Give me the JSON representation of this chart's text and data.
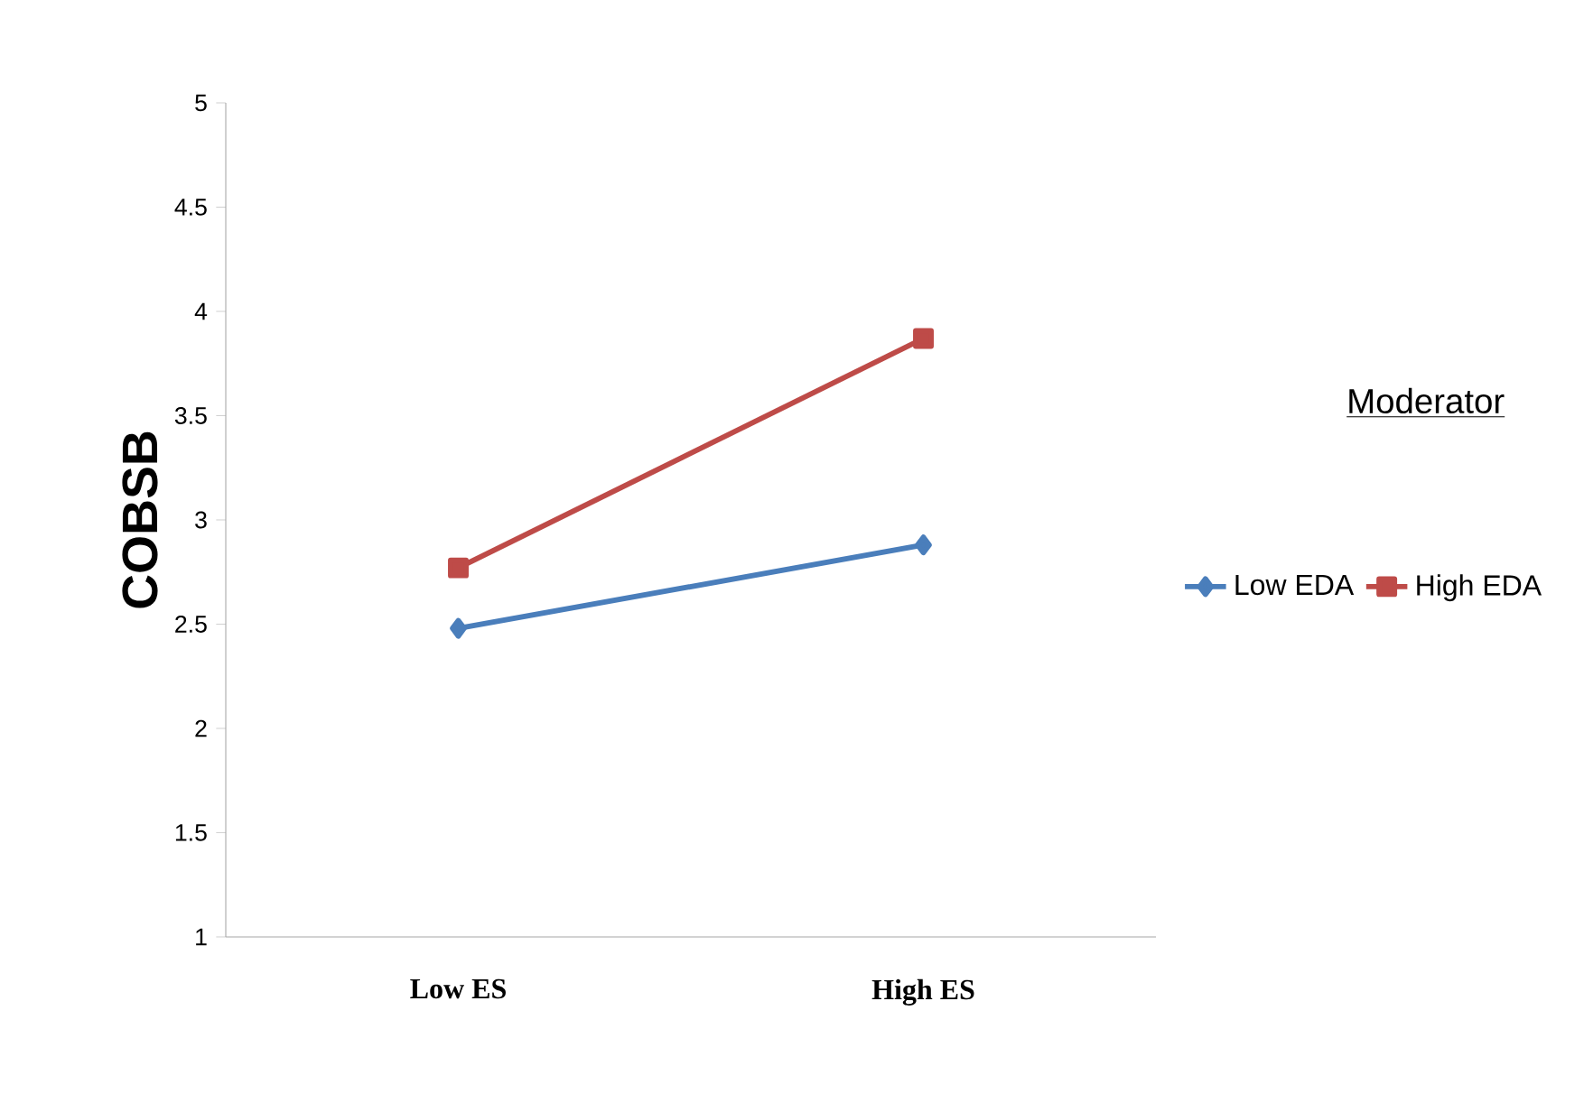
{
  "chart_data": {
    "type": "line",
    "ylabel": "COBSB",
    "legend_title": "Moderator",
    "categories": [
      "Low ES",
      "High ES"
    ],
    "series": [
      {
        "name": "Low EDA",
        "color": "#4a7ebb",
        "marker": "diamond",
        "values": [
          2.48,
          2.88
        ]
      },
      {
        "name": "High EDA",
        "color": "#be4b48",
        "marker": "square",
        "values": [
          2.77,
          3.87
        ]
      }
    ],
    "ylim": [
      1,
      5
    ],
    "yticks": [
      1,
      1.5,
      2,
      2.5,
      3,
      3.5,
      4,
      4.5,
      5
    ],
    "legend": "right",
    "grid": false
  }
}
